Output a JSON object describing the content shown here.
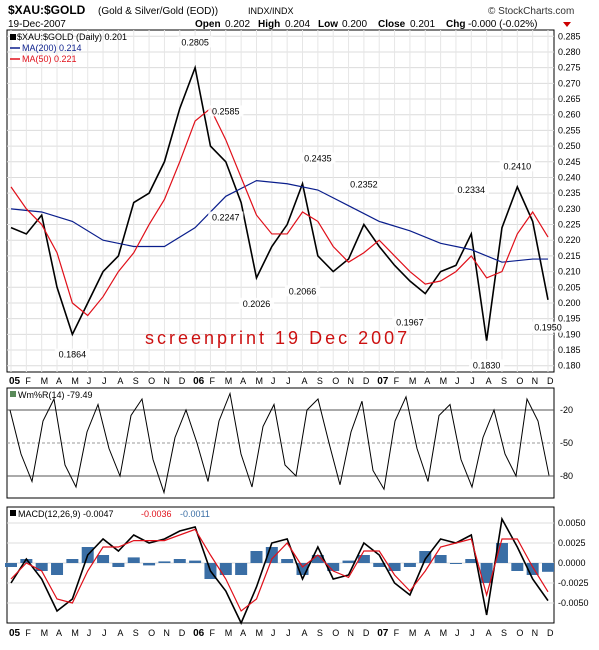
{
  "header": {
    "symbol": "$XAU:$GOLD",
    "description": "(Gold & Silver/Gold (EOD))",
    "exchange": "INDX/INDX",
    "date": "19-Dec-2007",
    "open_label": "Open",
    "open": "0.202",
    "high_label": "High",
    "high": "0.204",
    "low_label": "Low",
    "low": "0.200",
    "close_label": "Close",
    "close": "0.201",
    "chg_label": "Chg",
    "chg": "-0.000 (-0.02%)",
    "copyright": "© StockCharts.com"
  },
  "watermark": "screenprint 19 Dec 2007",
  "colors": {
    "price": "#000000",
    "ma200": "#0a1e8c",
    "ma50": "#e0101a",
    "accent_red": "#cc0000",
    "grid": "#d8d8d8",
    "axis": "#000000",
    "hist": "#3a6ea5",
    "wr_fill": "#5a8a5a"
  },
  "chart_data": [
    {
      "type": "line",
      "title": "$XAU:$GOLD (Daily) 0.201",
      "series": [
        {
          "name": "$XAU:$GOLD (Daily) 0.201",
          "color": "#000000",
          "x": [
            "2005-01",
            "2005-02",
            "2005-03",
            "2005-04",
            "2005-05",
            "2005-06",
            "2005-07",
            "2005-08",
            "2005-09",
            "2005-10",
            "2005-11",
            "2005-12",
            "2006-01",
            "2006-02",
            "2006-03",
            "2006-04",
            "2006-05",
            "2006-06",
            "2006-07",
            "2006-08",
            "2006-09",
            "2006-10",
            "2006-11",
            "2006-12",
            "2007-01",
            "2007-02",
            "2007-03",
            "2007-04",
            "2007-05",
            "2007-06",
            "2007-07",
            "2007-08",
            "2007-09",
            "2007-10",
            "2007-11",
            "2007-12"
          ],
          "values": [
            0.224,
            0.222,
            0.228,
            0.205,
            0.19,
            0.2,
            0.21,
            0.215,
            0.232,
            0.235,
            0.245,
            0.262,
            0.275,
            0.25,
            0.245,
            0.232,
            0.208,
            0.218,
            0.225,
            0.238,
            0.215,
            0.21,
            0.214,
            0.225,
            0.218,
            0.212,
            0.207,
            0.203,
            0.21,
            0.212,
            0.222,
            0.188,
            0.224,
            0.237,
            0.226,
            0.201
          ]
        },
        {
          "name": "MA(200) 0.214",
          "color": "#0a1e8c",
          "x": [
            "2005-01",
            "2005-03",
            "2005-05",
            "2005-07",
            "2005-09",
            "2005-11",
            "2006-01",
            "2006-03",
            "2006-05",
            "2006-07",
            "2006-09",
            "2006-11",
            "2007-01",
            "2007-03",
            "2007-05",
            "2007-07",
            "2007-09",
            "2007-11",
            "2007-12"
          ],
          "values": [
            0.23,
            0.229,
            0.226,
            0.22,
            0.218,
            0.218,
            0.224,
            0.234,
            0.239,
            0.238,
            0.236,
            0.231,
            0.226,
            0.223,
            0.219,
            0.217,
            0.213,
            0.214,
            0.214
          ]
        },
        {
          "name": "MA(50) 0.221",
          "color": "#e0101a",
          "x": [
            "2005-01",
            "2005-02",
            "2005-03",
            "2005-04",
            "2005-05",
            "2005-06",
            "2005-07",
            "2005-08",
            "2005-09",
            "2005-10",
            "2005-11",
            "2005-12",
            "2006-01",
            "2006-02",
            "2006-03",
            "2006-04",
            "2006-05",
            "2006-06",
            "2006-07",
            "2006-08",
            "2006-09",
            "2006-10",
            "2006-11",
            "2006-12",
            "2007-01",
            "2007-02",
            "2007-03",
            "2007-04",
            "2007-05",
            "2007-06",
            "2007-07",
            "2007-08",
            "2007-09",
            "2007-10",
            "2007-11",
            "2007-12"
          ],
          "values": [
            0.237,
            0.23,
            0.225,
            0.216,
            0.2,
            0.196,
            0.202,
            0.21,
            0.216,
            0.225,
            0.233,
            0.245,
            0.258,
            0.262,
            0.252,
            0.24,
            0.228,
            0.222,
            0.222,
            0.229,
            0.226,
            0.218,
            0.213,
            0.216,
            0.22,
            0.215,
            0.21,
            0.206,
            0.207,
            0.21,
            0.215,
            0.208,
            0.21,
            0.222,
            0.229,
            0.221
          ]
        }
      ],
      "annotations": [
        {
          "x": "2005-05",
          "y": 0.1864,
          "label": "0.1864"
        },
        {
          "x": "2006-01",
          "y": 0.2805,
          "label": "0.2805"
        },
        {
          "x": "2006-03",
          "y": 0.2247,
          "label": "0.2247"
        },
        {
          "x": "2006-03",
          "y": 0.2585,
          "label": "0.2585"
        },
        {
          "x": "2006-05",
          "y": 0.2026,
          "label": "0.2026"
        },
        {
          "x": "2006-08",
          "y": 0.2066,
          "label": "0.2066"
        },
        {
          "x": "2006-09",
          "y": 0.2435,
          "label": "0.2435"
        },
        {
          "x": "2006-12",
          "y": 0.2352,
          "label": "0.2352"
        },
        {
          "x": "2007-03",
          "y": 0.1967,
          "label": "0.1967"
        },
        {
          "x": "2007-07",
          "y": 0.2334,
          "label": "0.2334"
        },
        {
          "x": "2007-08",
          "y": 0.183,
          "label": "0.1830"
        },
        {
          "x": "2007-10",
          "y": 0.241,
          "label": "0.2410"
        },
        {
          "x": "2007-12",
          "y": 0.195,
          "label": "0.1950"
        }
      ],
      "yticks": [
        "0.285",
        "0.280",
        "0.275",
        "0.270",
        "0.265",
        "0.260",
        "0.255",
        "0.250",
        "0.245",
        "0.240",
        "0.235",
        "0.230",
        "0.225",
        "0.220",
        "0.215",
        "0.210",
        "0.205",
        "0.200",
        "0.195",
        "0.190",
        "0.185",
        "0.180"
      ],
      "ylim": [
        0.178,
        0.287
      ],
      "xlim": [
        "2005-01",
        "2007-12"
      ],
      "grid": true,
      "legend": "top-left"
    },
    {
      "type": "line",
      "title": "Wm%R(14) -79.49",
      "series": [
        {
          "name": "Wm%R(14) -79.49",
          "color": "#000000",
          "values": [
            -20,
            -60,
            -85,
            -30,
            -10,
            -70,
            -90,
            -40,
            -15,
            -55,
            -80,
            -25,
            -10,
            -65,
            -95,
            -45,
            -20,
            -50,
            -85,
            -30,
            -5,
            -60,
            -90,
            -35,
            -15,
            -70,
            -80,
            -20,
            -10,
            -50,
            -88,
            -40,
            -12,
            -75,
            -92,
            -30,
            -8,
            -55,
            -85,
            -25,
            -15,
            -65,
            -90,
            -45,
            -20,
            -60,
            -80,
            -10,
            -30,
            -79.49
          ]
        }
      ],
      "yticks": [
        "-20",
        "-50",
        "-80"
      ],
      "ylim": [
        -100,
        0
      ],
      "grid": true
    },
    {
      "type": "line",
      "title": "MACD(12,26,9) -0.0047, -0.0036, -0.0011",
      "series": [
        {
          "name": "MACD(12,26,9) -0.0047",
          "color": "#000000",
          "x": [
            "2005-01",
            "2005-02",
            "2005-03",
            "2005-04",
            "2005-05",
            "2005-06",
            "2005-07",
            "2005-08",
            "2005-09",
            "2005-10",
            "2005-11",
            "2005-12",
            "2006-01",
            "2006-02",
            "2006-03",
            "2006-04",
            "2006-05",
            "2006-06",
            "2006-07",
            "2006-08",
            "2006-09",
            "2006-10",
            "2006-11",
            "2006-12",
            "2007-01",
            "2007-02",
            "2007-03",
            "2007-04",
            "2007-05",
            "2007-06",
            "2007-07",
            "2007-08",
            "2007-09",
            "2007-10",
            "2007-11",
            "2007-12"
          ],
          "values": [
            -0.0025,
            0.0005,
            -0.002,
            -0.006,
            -0.0045,
            0.001,
            0.003,
            0.0015,
            0.0035,
            0.0025,
            0.003,
            0.004,
            0.0045,
            -0.001,
            -0.0035,
            -0.0075,
            -0.003,
            0.0025,
            0.003,
            -0.002,
            0.002,
            -0.002,
            -0.0015,
            0.0025,
            0.001,
            -0.0025,
            -0.004,
            0.0005,
            0.003,
            0.0025,
            0.0035,
            -0.0065,
            0.0055,
            0.002,
            -0.002,
            -0.0047
          ]
        },
        {
          "name": "-0.0036",
          "color": "#e0101a",
          "x": [
            "2005-01",
            "2005-02",
            "2005-03",
            "2005-04",
            "2005-05",
            "2005-06",
            "2005-07",
            "2005-08",
            "2005-09",
            "2005-10",
            "2005-11",
            "2005-12",
            "2006-01",
            "2006-02",
            "2006-03",
            "2006-04",
            "2006-05",
            "2006-06",
            "2006-07",
            "2006-08",
            "2006-09",
            "2006-10",
            "2006-11",
            "2006-12",
            "2007-01",
            "2007-02",
            "2007-03",
            "2007-04",
            "2007-05",
            "2007-06",
            "2007-07",
            "2007-08",
            "2007-09",
            "2007-10",
            "2007-11",
            "2007-12"
          ],
          "values": [
            -0.002,
            0.0,
            -0.001,
            -0.0045,
            -0.005,
            -0.001,
            0.002,
            0.002,
            0.0028,
            0.0028,
            0.0028,
            0.0035,
            0.0042,
            0.001,
            -0.002,
            -0.006,
            -0.0045,
            0.0005,
            0.0025,
            -0.0005,
            0.001,
            -0.001,
            -0.0018,
            0.0015,
            0.0015,
            -0.0015,
            -0.0035,
            -0.001,
            0.002,
            0.0025,
            0.003,
            -0.004,
            0.003,
            0.003,
            -0.0005,
            -0.0036
          ]
        },
        {
          "name": "-0.0011",
          "color": "#3a6ea5",
          "x": [
            "2005-01",
            "2005-02",
            "2005-03",
            "2005-04",
            "2005-05",
            "2005-06",
            "2005-07",
            "2005-08",
            "2005-09",
            "2005-10",
            "2005-11",
            "2005-12",
            "2006-01",
            "2006-02",
            "2006-03",
            "2006-04",
            "2006-05",
            "2006-06",
            "2006-07",
            "2006-08",
            "2006-09",
            "2006-10",
            "2006-11",
            "2006-12",
            "2007-01",
            "2007-02",
            "2007-03",
            "2007-04",
            "2007-05",
            "2007-06",
            "2007-07",
            "2007-08",
            "2007-09",
            "2007-10",
            "2007-11",
            "2007-12"
          ],
          "values": [
            -0.0005,
            0.0005,
            -0.001,
            -0.0015,
            0.0005,
            0.002,
            0.001,
            -0.0005,
            0.0007,
            -0.0003,
            0.0002,
            0.0005,
            0.0003,
            -0.002,
            -0.0015,
            -0.0015,
            0.0015,
            0.002,
            0.0005,
            -0.0015,
            0.001,
            -0.001,
            0.0003,
            0.001,
            -0.0005,
            -0.001,
            -0.0005,
            0.0015,
            0.001,
            0.0,
            0.0005,
            -0.0025,
            0.0025,
            -0.001,
            -0.0015,
            -0.0011
          ]
        }
      ],
      "yticks": [
        "0.0050",
        "0.0025",
        "0.0000",
        "-0.0025",
        "-0.0050"
      ],
      "ylim": [
        -0.0075,
        0.007
      ],
      "grid": true
    }
  ],
  "xaxis_labels": [
    {
      "m": 0,
      "label": "05"
    },
    {
      "m": 1,
      "label": "F"
    },
    {
      "m": 2,
      "label": "M"
    },
    {
      "m": 3,
      "label": "A"
    },
    {
      "m": 4,
      "label": "M"
    },
    {
      "m": 5,
      "label": "J"
    },
    {
      "m": 6,
      "label": "J"
    },
    {
      "m": 7,
      "label": "A"
    },
    {
      "m": 8,
      "label": "S"
    },
    {
      "m": 9,
      "label": "O"
    },
    {
      "m": 10,
      "label": "N"
    },
    {
      "m": 11,
      "label": "D"
    },
    {
      "m": 12,
      "label": "06"
    },
    {
      "m": 13,
      "label": "F"
    },
    {
      "m": 14,
      "label": "M"
    },
    {
      "m": 15,
      "label": "A"
    },
    {
      "m": 16,
      "label": "M"
    },
    {
      "m": 17,
      "label": "J"
    },
    {
      "m": 18,
      "label": "J"
    },
    {
      "m": 19,
      "label": "A"
    },
    {
      "m": 20,
      "label": "S"
    },
    {
      "m": 21,
      "label": "O"
    },
    {
      "m": 22,
      "label": "N"
    },
    {
      "m": 23,
      "label": "D"
    },
    {
      "m": 24,
      "label": "07"
    },
    {
      "m": 25,
      "label": "F"
    },
    {
      "m": 26,
      "label": "M"
    },
    {
      "m": 27,
      "label": "A"
    },
    {
      "m": 28,
      "label": "M"
    },
    {
      "m": 29,
      "label": "J"
    },
    {
      "m": 30,
      "label": "J"
    },
    {
      "m": 31,
      "label": "A"
    },
    {
      "m": 32,
      "label": "S"
    },
    {
      "m": 33,
      "label": "O"
    },
    {
      "m": 34,
      "label": "N"
    },
    {
      "m": 35,
      "label": "D"
    }
  ]
}
